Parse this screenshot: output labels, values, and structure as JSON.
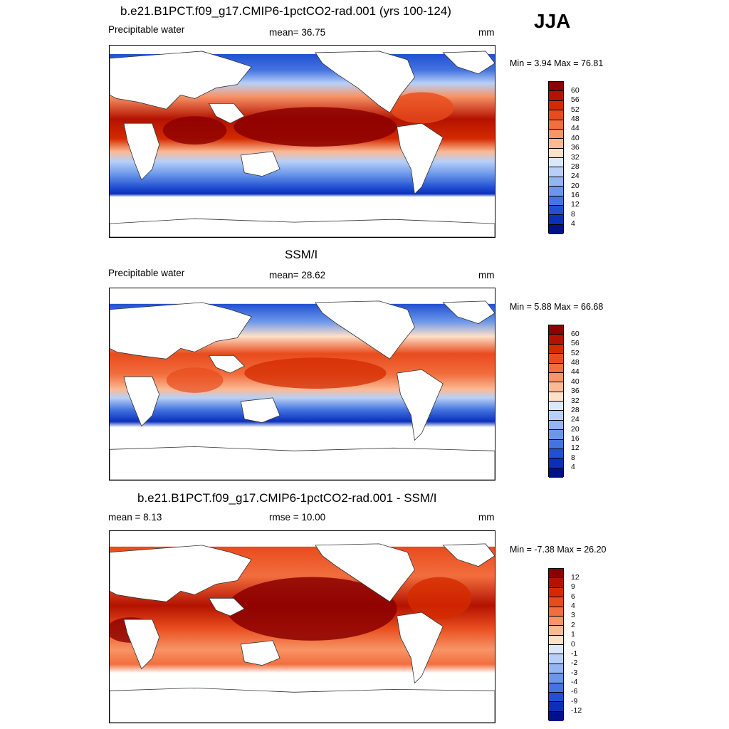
{
  "season": "JJA",
  "panels": [
    {
      "title": "b.e21.B1PCT.f09_g17.CMIP6-1pctCO2-rad.001 (yrs 100-124)",
      "left_label": "Precipitable water",
      "center_label": "mean=  36.75",
      "right_label": "mm",
      "minmax": "Min =   3.94 Max =  76.81",
      "colorbar_labels": [
        "60",
        "56",
        "52",
        "48",
        "44",
        "40",
        "36",
        "32",
        "28",
        "24",
        "20",
        "16",
        "12",
        "8",
        "4"
      ],
      "colorbar_colors": [
        "#8b0000",
        "#b31200",
        "#d42a00",
        "#e84b1c",
        "#f26e3e",
        "#f89466",
        "#fbb993",
        "#fde0c8",
        "#dbe7fb",
        "#b8d0f7",
        "#93b6f2",
        "#6b97ea",
        "#4474e0",
        "#2150d2",
        "#0b30b8",
        "#00108a"
      ],
      "map_type": "model"
    },
    {
      "title": "SSM/I",
      "left_label": "Precipitable water",
      "center_label": "mean=  28.62",
      "right_label": "mm",
      "minmax": "Min =   5.88 Max =  66.68",
      "colorbar_labels": [
        "60",
        "56",
        "52",
        "48",
        "44",
        "40",
        "36",
        "32",
        "28",
        "24",
        "20",
        "16",
        "12",
        "8",
        "4"
      ],
      "colorbar_colors": [
        "#8b0000",
        "#b31200",
        "#d42a00",
        "#e84b1c",
        "#f26e3e",
        "#f89466",
        "#fbb993",
        "#fde0c8",
        "#dbe7fb",
        "#b8d0f7",
        "#93b6f2",
        "#6b97ea",
        "#4474e0",
        "#2150d2",
        "#0b30b8",
        "#00108a"
      ],
      "map_type": "obs"
    },
    {
      "title": "b.e21.B1PCT.f09_g17.CMIP6-1pctCO2-rad.001 - SSM/I",
      "left_label": "mean =   8.13",
      "center_label": "rmse =  10.00",
      "right_label": "mm",
      "minmax": "Min =  -7.38 Max =  26.20",
      "colorbar_labels": [
        "12",
        "9",
        "6",
        "4",
        "3",
        "2",
        "1",
        "0",
        "-1",
        "-2",
        "-3",
        "-4",
        "-6",
        "-9",
        "-12"
      ],
      "colorbar_colors": [
        "#8b0000",
        "#b31200",
        "#d42a00",
        "#e84b1c",
        "#f26e3e",
        "#f89466",
        "#fbb993",
        "#fde0c8",
        "#dbe7fb",
        "#b8d0f7",
        "#93b6f2",
        "#6b97ea",
        "#4474e0",
        "#2150d2",
        "#0b30b8",
        "#00108a"
      ],
      "map_type": "diff"
    }
  ]
}
